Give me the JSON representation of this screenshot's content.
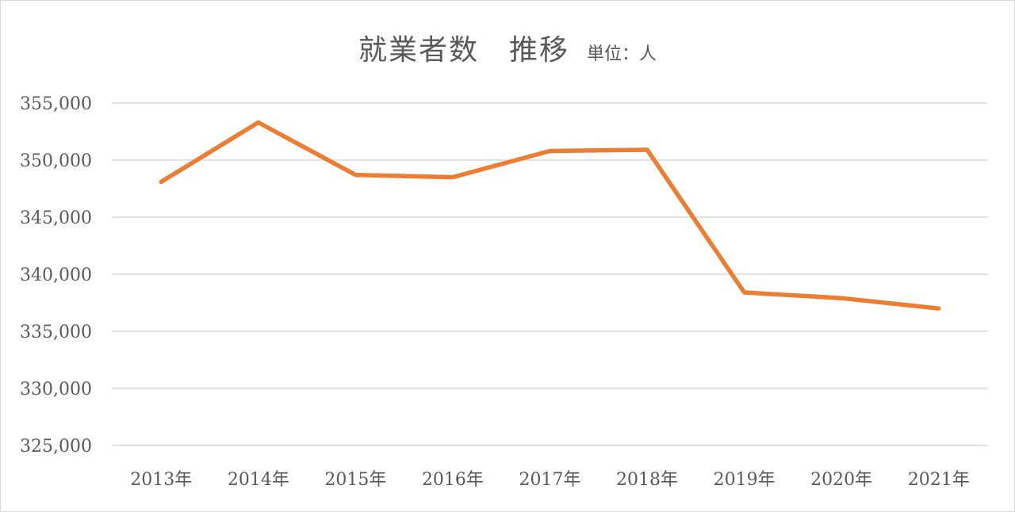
{
  "chart_data": {
    "type": "line",
    "title": "就業者数　推移",
    "unit_label": "単位：人",
    "categories": [
      "2013年",
      "2014年",
      "2015年",
      "2016年",
      "2017年",
      "2018年",
      "2019年",
      "2020年",
      "2021年"
    ],
    "series": [
      {
        "values": [
          348100,
          353300,
          348700,
          348500,
          350800,
          350900,
          338400,
          337900,
          337000
        ]
      }
    ],
    "ylim": [
      325000,
      355000
    ],
    "y_ticks": [
      "325,000",
      "330,000",
      "335,000",
      "340,000",
      "345,000",
      "350,000",
      "355,000"
    ],
    "grid": true,
    "line_color": "#ed7d31",
    "grid_color": "#d9d9d9"
  }
}
